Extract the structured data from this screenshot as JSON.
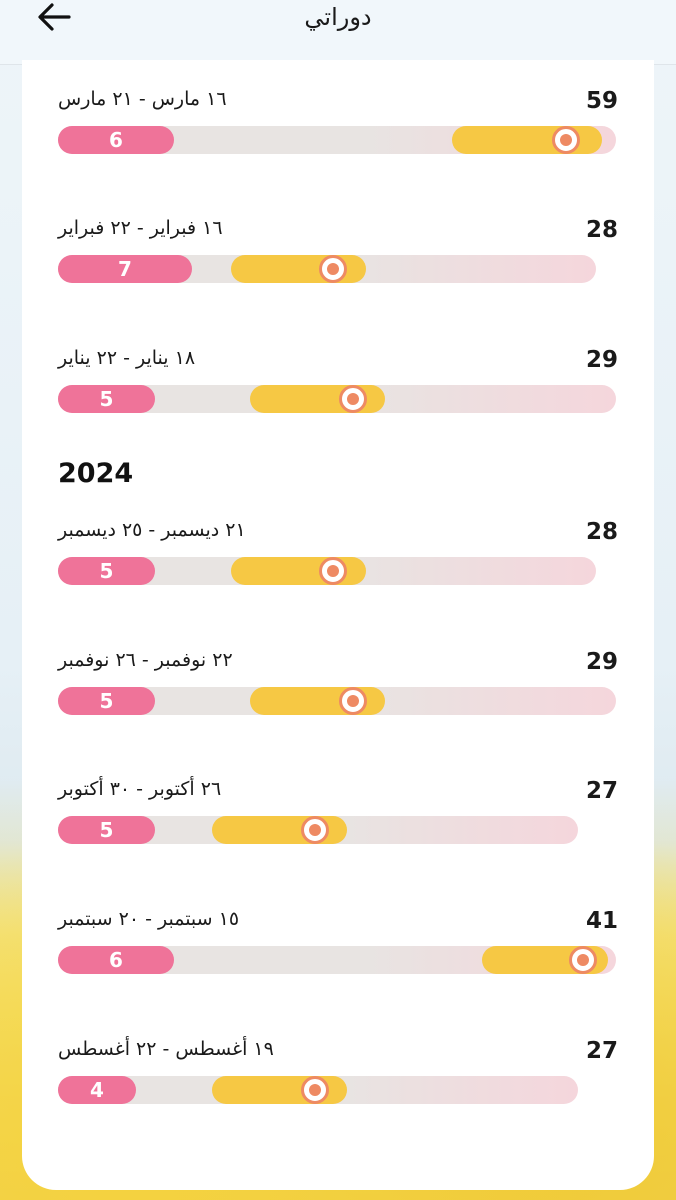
{
  "header": {
    "title": "دوراتي"
  },
  "cycles_2025": [
    {
      "length": "59",
      "dates": "١٦ مارس - ٢١ مارس",
      "period_days": "6"
    },
    {
      "length": "28",
      "dates": "١٦ فبراير - ٢٢ فبراير",
      "period_days": "7"
    },
    {
      "length": "29",
      "dates": "١٨ يناير - ٢٢ يناير",
      "period_days": "5"
    }
  ],
  "year_2024": "2024",
  "cycles_2024": [
    {
      "length": "28",
      "dates": "٢١ ديسمبر - ٢٥ ديسمبر",
      "period_days": "5"
    },
    {
      "length": "29",
      "dates": "٢٢ نوفمبر - ٢٦ نوفمبر",
      "period_days": "5"
    },
    {
      "length": "27",
      "dates": "٢٦ أكتوبر - ٣٠ أكتوبر",
      "period_days": "5"
    },
    {
      "length": "41",
      "dates": "١٥ سبتمبر - ٢٠ سبتمبر",
      "period_days": "6"
    },
    {
      "length": "27",
      "dates": "١٩ أغسطس - ٢٢ أغسطس",
      "period_days": "4"
    }
  ],
  "icons": {
    "back": "arrow-left-icon",
    "ovulation": "ovulation-marker-icon"
  },
  "colors": {
    "period": "#ef7399",
    "fertile": "#f6c844",
    "ovulation": "#ee8a63",
    "track": "#e8e4e2"
  }
}
